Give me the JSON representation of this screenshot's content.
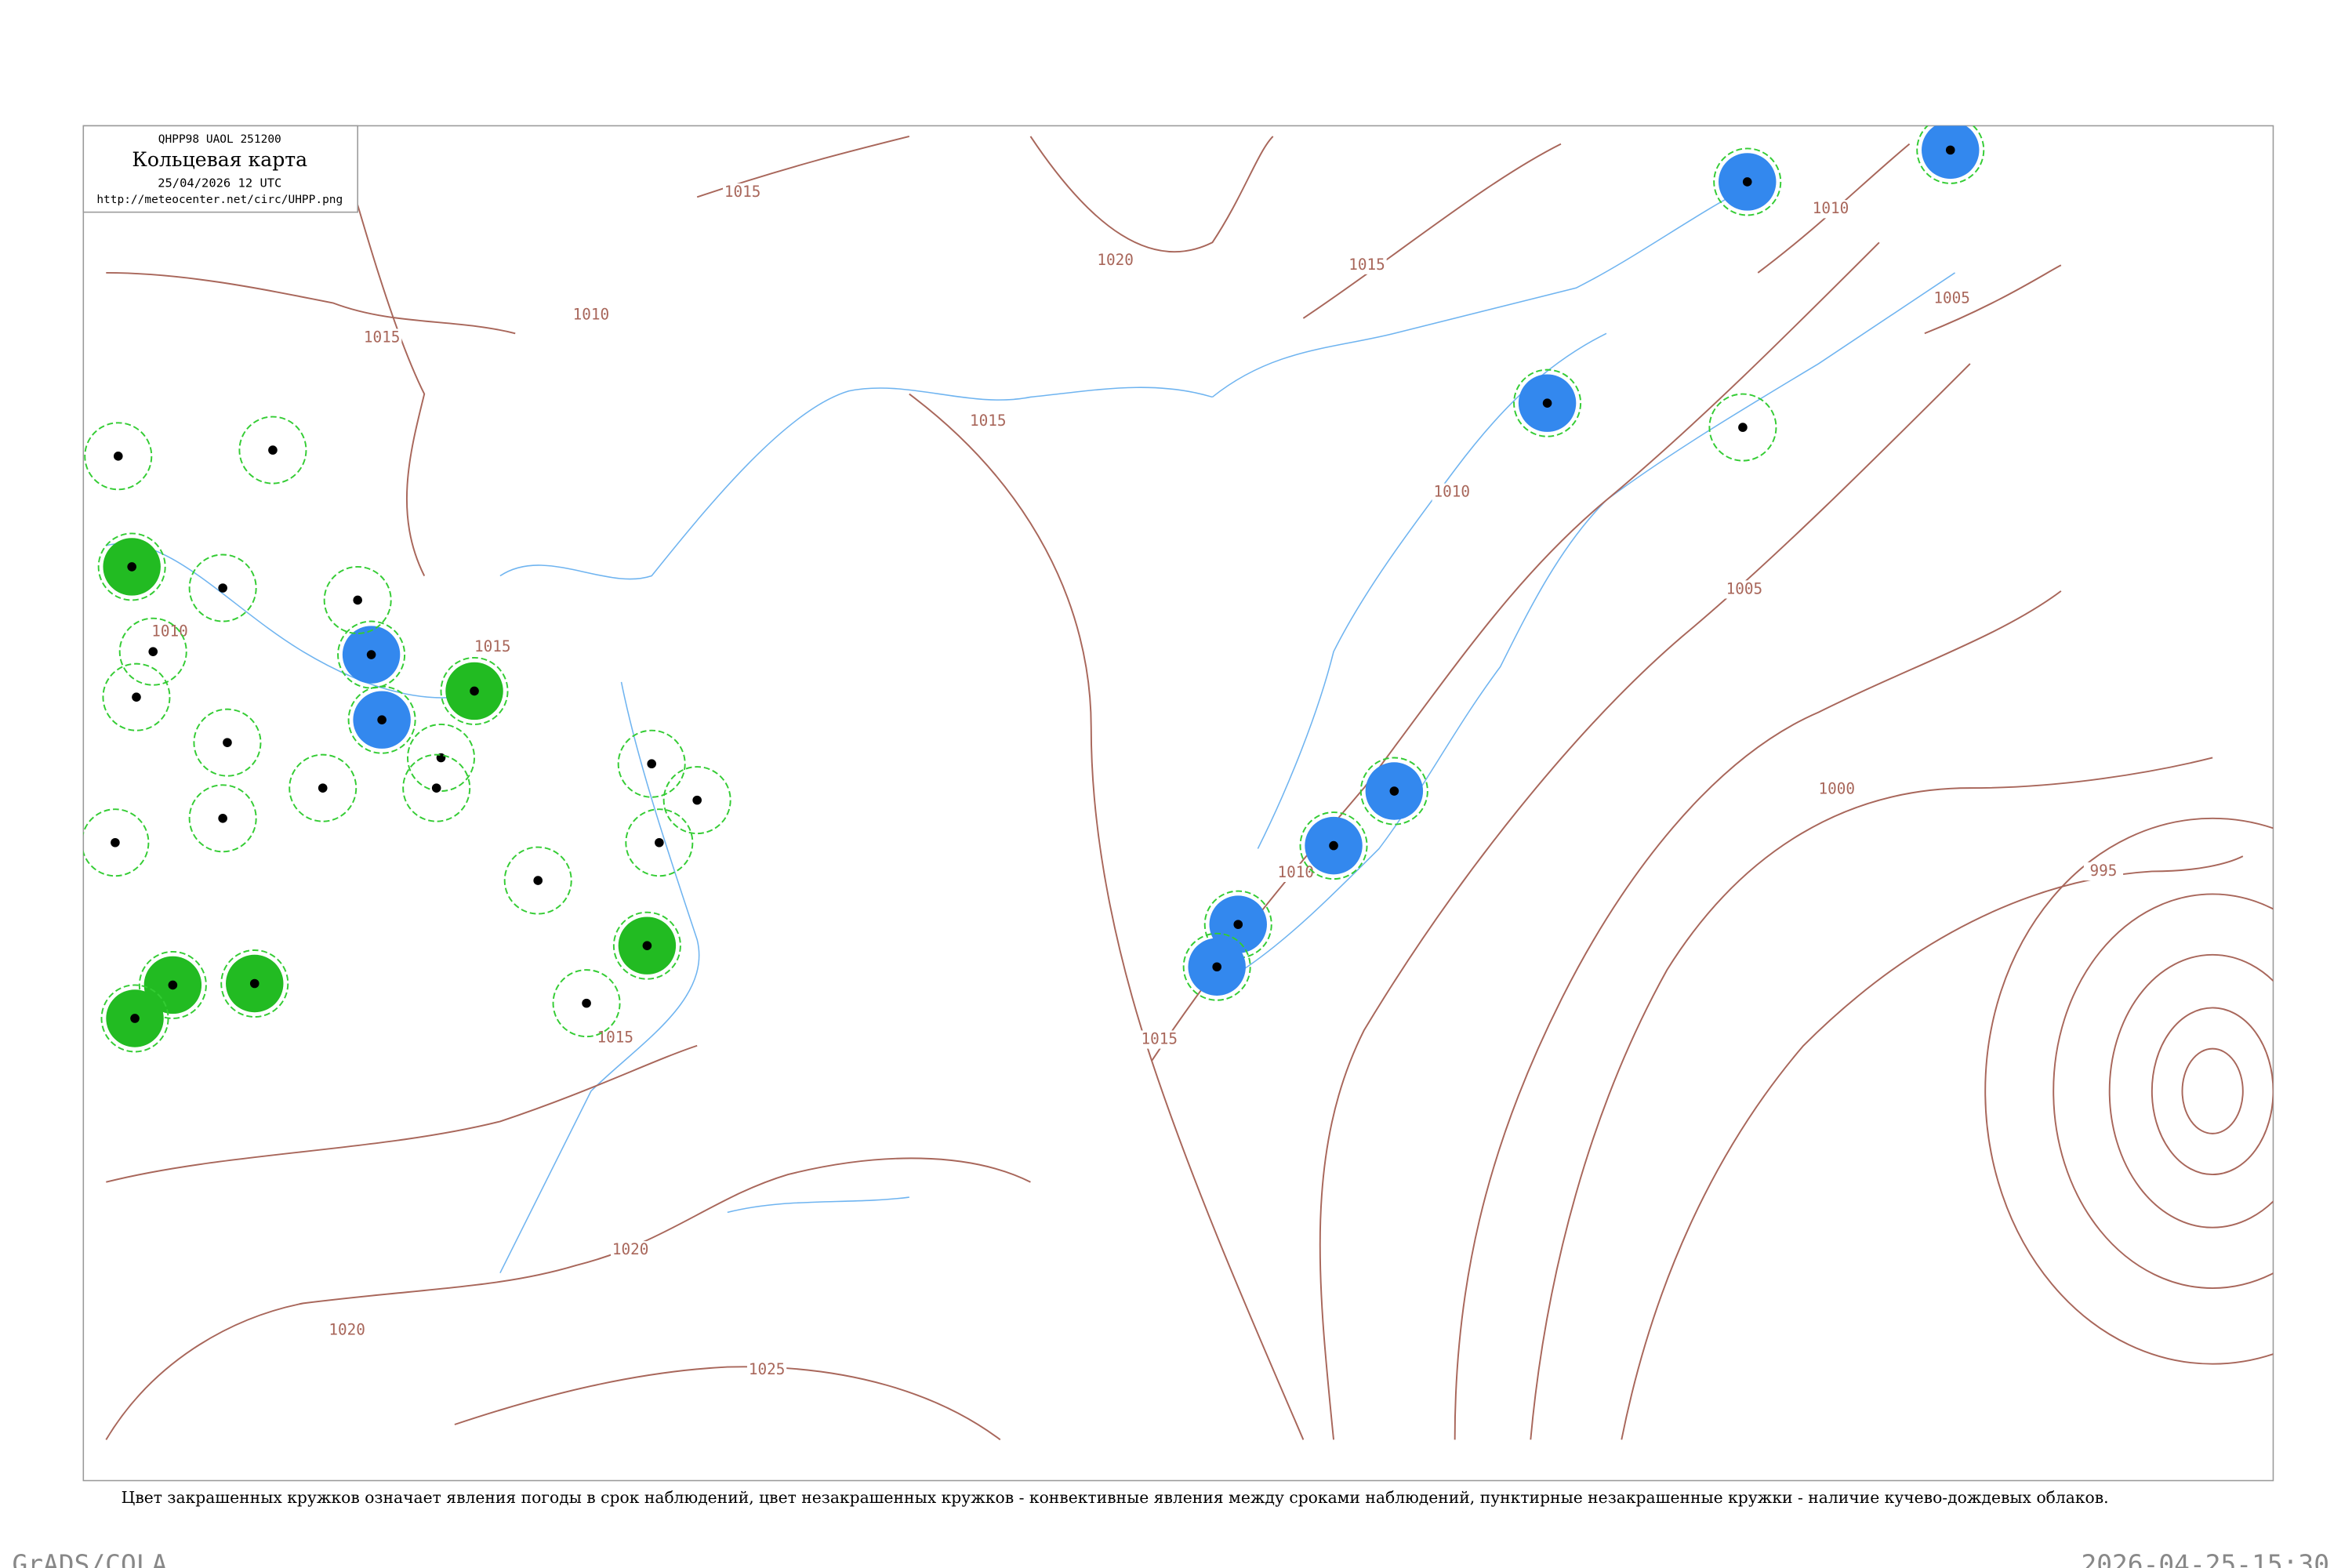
{
  "header": {
    "code": "QHPP98 UAOL 251200",
    "title": "Кольцевая карта",
    "date": "25/04/2026 12 UTC",
    "url": "http://meteocenter.net/circ/UHPP.png"
  },
  "isobars": [
    1015,
    1020,
    1015,
    1010,
    1005,
    1015,
    1015,
    1010,
    1005,
    1000,
    995,
    1010,
    1015,
    1015,
    1020,
    1025,
    1020,
    1010,
    1015,
    1010
  ],
  "caption": "Цвет закрашенных кружков означает явления погоды в срок наблюдений, цвет незакрашенных кружков - конвективные явления между сроками наблюдений, пунктирные незакрашенные кружки - наличие кучево-дождевых облаков.",
  "footer": {
    "left": "GrADS/COLA",
    "right": "2026-04-25-15:30"
  }
}
